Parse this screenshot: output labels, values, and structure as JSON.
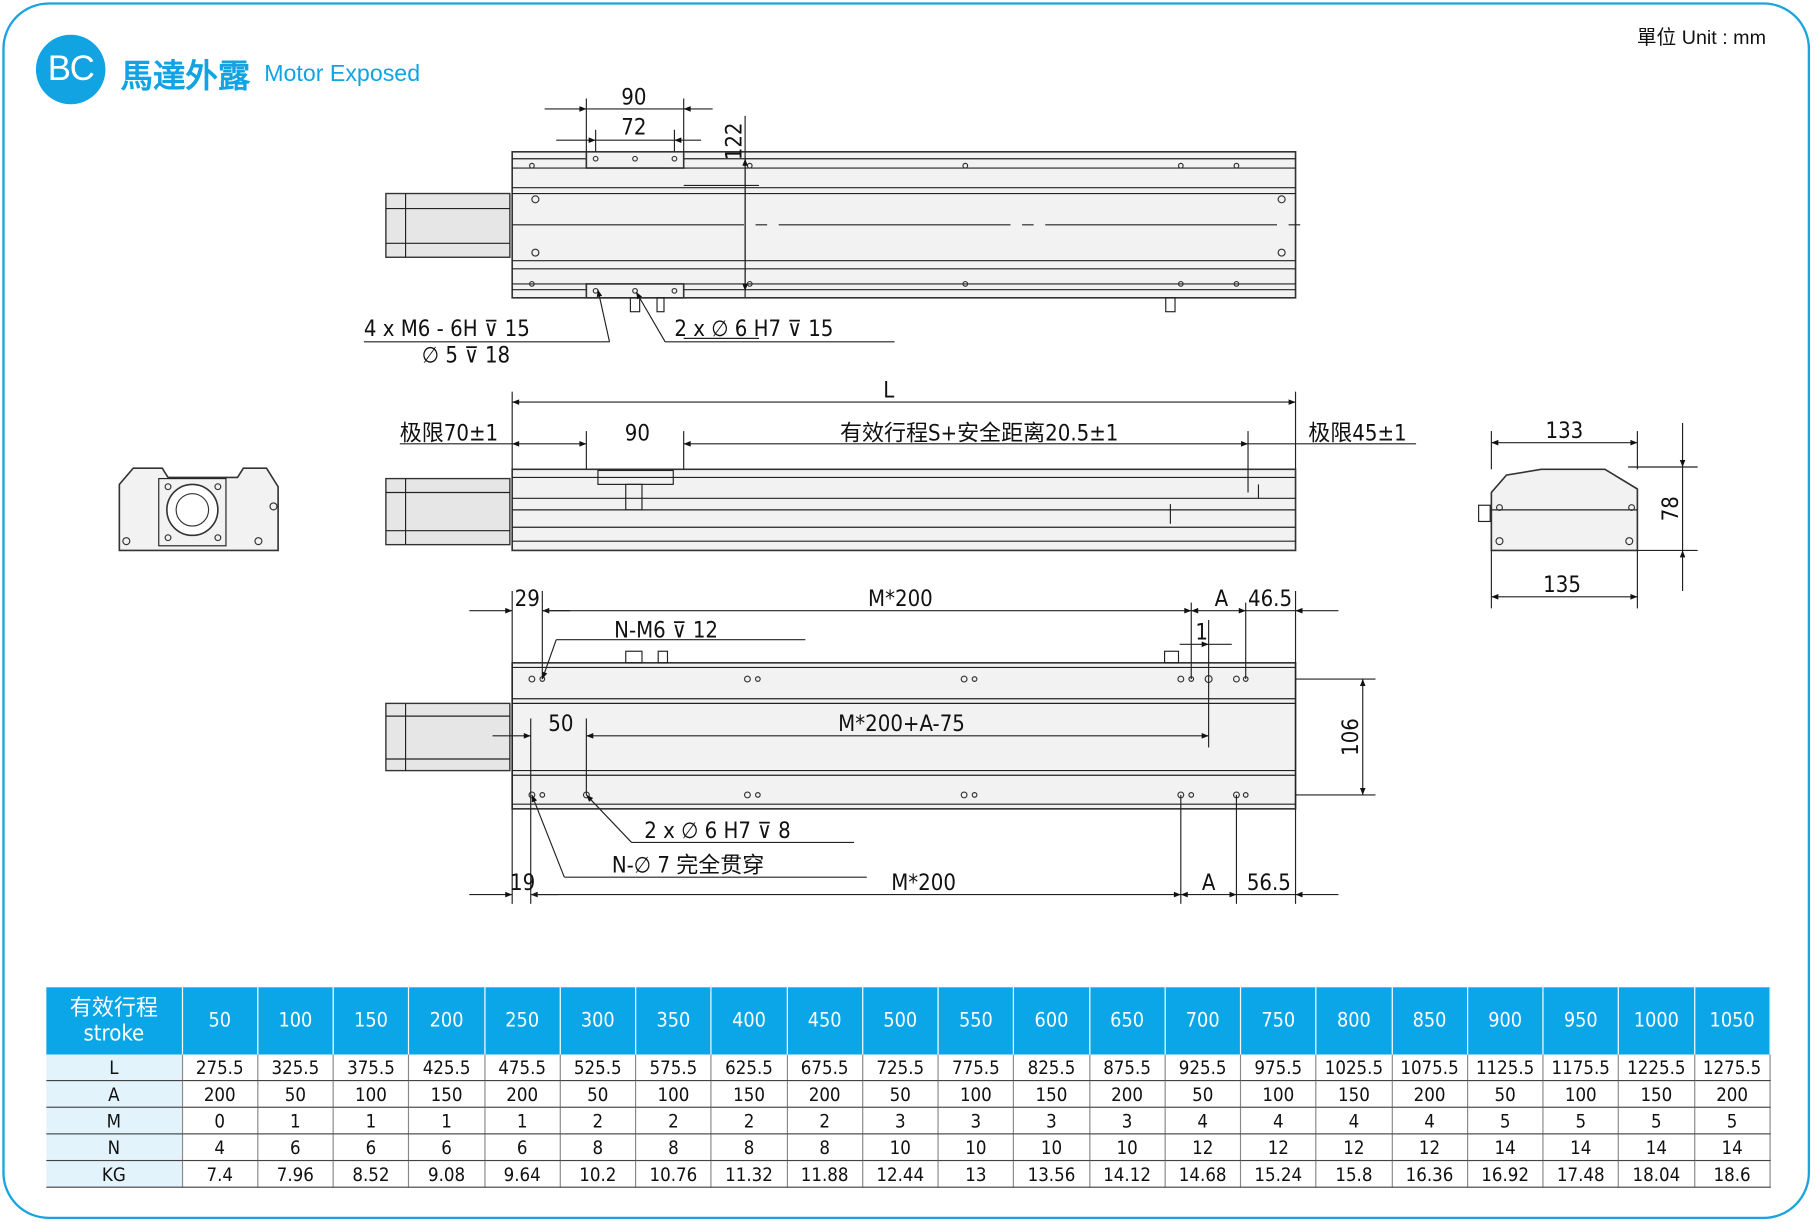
{
  "header": {
    "badge": "BC",
    "title_cn": "馬達外露",
    "title_en": "Motor Exposed",
    "unit": "單位 Unit : mm"
  },
  "colors": {
    "accent": "#12a3e3",
    "header_bg": "#0aa6e8",
    "label_bg": "#e3f3fc"
  },
  "top_view": {
    "dim_90": "90",
    "dim_72": "72",
    "dim_122": "122",
    "note1": "4 x  M6 - 6H ⊽ 15",
    "note1b": "∅ 5 ⊽ 18",
    "note2": "2 x  ∅  6 H7 ⊽ 15"
  },
  "side_view": {
    "dim_L": "L",
    "limit_left": "极限70±1",
    "dim_90": "90",
    "stroke_note": "有效行程S+安全距离20.5±1",
    "limit_right": "极限45±1"
  },
  "end_view": {
    "dim_133": "133",
    "dim_78": "78",
    "dim_135": "135"
  },
  "bottom_view": {
    "dim_29": "29",
    "dim_m200_top": "M*200",
    "dim_A_top": "A",
    "dim_46_5": "46.5",
    "note_m6": "N-M6 ⊽ 12",
    "dim_1": "1",
    "dim_50": "50",
    "dim_formula": "M*200+A-75",
    "dim_106": "106",
    "note_pin": "2 x  ∅  6 H7 ⊽ 8",
    "note_through": "N-∅ 7 完全贯穿",
    "dim_19": "19",
    "dim_m200_bot": "M*200",
    "dim_A_bot": "A",
    "dim_56_5": "56.5"
  },
  "table": {
    "header_label": [
      "有效行程",
      "stroke"
    ],
    "strokes": [
      "50",
      "100",
      "150",
      "200",
      "250",
      "300",
      "350",
      "400",
      "450",
      "500",
      "550",
      "600",
      "650",
      "700",
      "750",
      "800",
      "850",
      "900",
      "950",
      "1000",
      "1050"
    ],
    "rows": [
      {
        "label": "L",
        "values": [
          "275.5",
          "325.5",
          "375.5",
          "425.5",
          "475.5",
          "525.5",
          "575.5",
          "625.5",
          "675.5",
          "725.5",
          "775.5",
          "825.5",
          "875.5",
          "925.5",
          "975.5",
          "1025.5",
          "1075.5",
          "1125.5",
          "1175.5",
          "1225.5",
          "1275.5"
        ]
      },
      {
        "label": "A",
        "values": [
          "200",
          "50",
          "100",
          "150",
          "200",
          "50",
          "100",
          "150",
          "200",
          "50",
          "100",
          "150",
          "200",
          "50",
          "100",
          "150",
          "200",
          "50",
          "100",
          "150",
          "200"
        ]
      },
      {
        "label": "M",
        "values": [
          "0",
          "1",
          "1",
          "1",
          "1",
          "2",
          "2",
          "2",
          "2",
          "3",
          "3",
          "3",
          "3",
          "4",
          "4",
          "4",
          "4",
          "5",
          "5",
          "5",
          "5"
        ]
      },
      {
        "label": "N",
        "values": [
          "4",
          "6",
          "6",
          "6",
          "6",
          "8",
          "8",
          "8",
          "8",
          "10",
          "10",
          "10",
          "10",
          "12",
          "12",
          "12",
          "12",
          "14",
          "14",
          "14",
          "14"
        ]
      },
      {
        "label": "KG",
        "values": [
          "7.4",
          "7.96",
          "8.52",
          "9.08",
          "9.64",
          "10.2",
          "10.76",
          "11.32",
          "11.88",
          "12.44",
          "13",
          "13.56",
          "14.12",
          "14.68",
          "15.24",
          "15.8",
          "16.36",
          "16.92",
          "17.48",
          "18.04",
          "18.6"
        ]
      }
    ]
  }
}
